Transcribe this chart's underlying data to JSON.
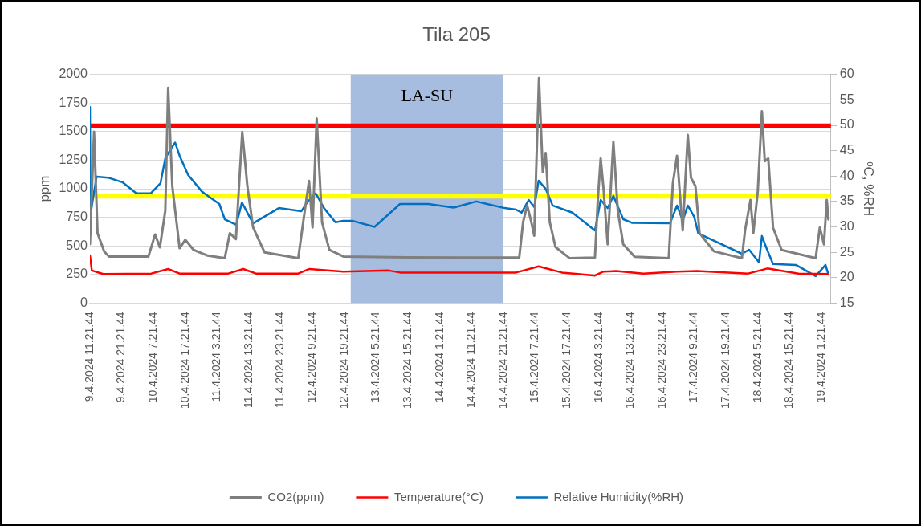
{
  "chart_data": {
    "type": "line",
    "title": "Tila 205",
    "ylabel": "ppm",
    "y2label": "ᵒC, %RH",
    "xlim": [
      "2024-04-09T11:21",
      "2024-04-19T04:21"
    ],
    "ylim": [
      0,
      2000
    ],
    "yticks": [
      0,
      250,
      500,
      750,
      1000,
      1250,
      1500,
      1750,
      2000
    ],
    "y2lim": [
      15,
      60
    ],
    "y2ticks": [
      15,
      20,
      25,
      30,
      35,
      40,
      45,
      50,
      55,
      60
    ],
    "xticks": [
      {
        "value": "2024-04-09T11:21",
        "label": "9.4.2024 11.21.44"
      },
      {
        "value": "2024-04-09T21:21",
        "label": "9.4.2024 21.21.44"
      },
      {
        "value": "2024-04-10T07:21",
        "label": "10.4.2024 7.21.44"
      },
      {
        "value": "2024-04-10T17:21",
        "label": "10.4.2024 17.21.44"
      },
      {
        "value": "2024-04-11T03:21",
        "label": "11.4.2024 3.21.44"
      },
      {
        "value": "2024-04-11T13:21",
        "label": "11.4.2024 13.21.44"
      },
      {
        "value": "2024-04-11T23:21",
        "label": "11.4.2024 23.21.44"
      },
      {
        "value": "2024-04-12T09:21",
        "label": "12.4.2024 9.21.44"
      },
      {
        "value": "2024-04-12T19:21",
        "label": "12.4.2024 19.21.44"
      },
      {
        "value": "2024-04-13T05:21",
        "label": "13.4.2024 5.21.44"
      },
      {
        "value": "2024-04-13T15:21",
        "label": "13.4.2024 15.21.44"
      },
      {
        "value": "2024-04-14T01:21",
        "label": "14.4.2024 1.21.44"
      },
      {
        "value": "2024-04-14T11:21",
        "label": "14.4.2024 11.21.44"
      },
      {
        "value": "2024-04-14T21:21",
        "label": "14.4.2024 21.21.44"
      },
      {
        "value": "2024-04-15T07:21",
        "label": "15.4.2024 7.21.44"
      },
      {
        "value": "2024-04-15T17:21",
        "label": "15.4.2024 17.21.44"
      },
      {
        "value": "2024-04-16T03:21",
        "label": "16.4.2024 3.21.44"
      },
      {
        "value": "2024-04-16T13:21",
        "label": "16.4.2024 13.21.44"
      },
      {
        "value": "2024-04-16T23:21",
        "label": "16.4.2024 23.21.44"
      },
      {
        "value": "2024-04-17T09:21",
        "label": "17.4.2024 9.21.44"
      },
      {
        "value": "2024-04-17T19:21",
        "label": "17.4.2024 19.21.44"
      },
      {
        "value": "2024-04-18T05:21",
        "label": "18.4.2024 5.21.44"
      },
      {
        "value": "2024-04-18T15:21",
        "label": "18.4.2024 15.21.44"
      },
      {
        "value": "2024-04-19T01:21",
        "label": "19.4.2024 1.21.44"
      }
    ],
    "grid": "y",
    "legend": "bottom",
    "marker": "none",
    "line_style": "solid",
    "bands": [
      {
        "axis": "x",
        "from": "2024-04-12T21:21",
        "to": "2024-04-14T21:21",
        "label": "LA-SU",
        "color": "#a7bde0"
      }
    ],
    "ref_lines": [
      {
        "axis": "y",
        "value": 1550,
        "color": "#ff0000"
      },
      {
        "axis": "y",
        "value": 935,
        "color": "#ffff00"
      }
    ],
    "series": [
      {
        "name": "CO2(ppm)",
        "color": "#7f7f7f",
        "x": [
          "2024-04-09T11:21",
          "2024-04-09T12:39",
          "2024-04-09T13:45",
          "2024-04-09T15:51",
          "2024-04-09T17:21",
          "2024-04-10T05:45",
          "2024-04-10T07:51",
          "2024-04-10T09:21",
          "2024-04-10T11:03",
          "2024-04-10T11:57",
          "2024-04-10T13:15",
          "2024-04-10T15:33",
          "2024-04-10T17:21",
          "2024-04-10T19:57",
          "2024-04-11T00:21",
          "2024-04-11T05:45",
          "2024-04-11T07:21",
          "2024-04-11T09:15",
          "2024-04-11T11:15",
          "2024-04-11T12:51",
          "2024-04-11T14:39",
          "2024-04-11T18:15",
          "2024-04-12T04:51",
          "2024-04-12T06:39",
          "2024-04-12T08:15",
          "2024-04-12T09:21",
          "2024-04-12T10:39",
          "2024-04-12T12:21",
          "2024-04-12T14:39",
          "2024-04-12T19:03",
          "2024-04-13T15:21",
          "2024-04-14T11:21",
          "2024-04-15T02:21",
          "2024-04-15T03:33",
          "2024-04-15T04:51",
          "2024-04-15T06:09",
          "2024-04-15T07:03",
          "2024-04-15T08:33",
          "2024-04-15T09:45",
          "2024-04-15T10:39",
          "2024-04-15T11:57",
          "2024-04-15T13:45",
          "2024-04-15T18:09",
          "2024-04-16T02:09",
          "2024-04-16T03:03",
          "2024-04-16T03:57",
          "2024-04-16T04:51",
          "2024-04-16T06:09",
          "2024-04-16T07:57",
          "2024-04-16T09:21",
          "2024-04-16T11:03",
          "2024-04-16T14:39",
          "2024-04-17T01:21",
          "2024-04-17T02:39",
          "2024-04-17T03:57",
          "2024-04-17T05:45",
          "2024-04-17T07:21",
          "2024-04-17T08:21",
          "2024-04-17T09:45",
          "2024-04-17T11:03",
          "2024-04-17T15:33",
          "2024-04-18T00:21",
          "2024-04-18T01:21",
          "2024-04-18T03:03",
          "2024-04-18T03:57",
          "2024-04-18T05:21",
          "2024-04-18T06:39",
          "2024-04-18T07:33",
          "2024-04-18T08:39",
          "2024-04-18T10:09",
          "2024-04-18T12:51",
          "2024-04-18T23:33",
          "2024-04-19T00:51",
          "2024-04-19T02:09",
          "2024-04-19T03:03",
          "2024-04-19T03:33"
        ],
        "values": [
          516,
          1500,
          610,
          450,
          407,
          407,
          600,
          487,
          807,
          1884,
          1025,
          480,
          553,
          465,
          415,
          393,
          611,
          560,
          1498,
          1025,
          662,
          444,
          393,
          756,
          1069,
          662,
          1615,
          705,
          465,
          407,
          400,
          398,
          398,
          708,
          853,
          708,
          589,
          1969,
          1144,
          1314,
          708,
          489,
          393,
          398,
          902,
          1265,
          999,
          514,
          1411,
          805,
          514,
          405,
          393,
          1047,
          1289,
          635,
          1471,
          1096,
          1023,
          611,
          453,
          393,
          635,
          902,
          611,
          975,
          1678,
          1241,
          1265,
          660,
          465,
          393,
          660,
          514,
          902,
          732
        ]
      },
      {
        "name": "Temperature(°C)",
        "color": "#ff0000",
        "axis": "y2",
        "x": [
          "2024-04-09T11:21",
          "2024-04-09T11:57",
          "2024-04-09T15:33",
          "2024-04-10T06:39",
          "2024-04-10T11:57",
          "2024-04-10T15:33",
          "2024-04-11T06:51",
          "2024-04-11T11:33",
          "2024-04-11T15:33",
          "2024-04-12T04:51",
          "2024-04-12T08:21",
          "2024-04-12T19:03",
          "2024-04-13T09:21",
          "2024-04-13T12:51",
          "2024-04-15T01:21",
          "2024-04-15T08:27",
          "2024-04-15T15:45",
          "2024-04-15T20:51",
          "2024-04-16T02:09",
          "2024-04-16T04:51",
          "2024-04-16T08:51",
          "2024-04-16T17:21",
          "2024-04-17T03:57",
          "2024-04-17T10:15",
          "2024-04-18T02:21",
          "2024-04-18T08:21",
          "2024-04-18T18:09",
          "2024-04-19T03:33"
        ],
        "values": [
          24.4,
          21.4,
          20.7,
          20.8,
          21.7,
          20.8,
          20.8,
          21.7,
          20.8,
          20.8,
          21.7,
          21.2,
          21.4,
          21.0,
          21.0,
          22.2,
          21.0,
          20.7,
          20.4,
          21.2,
          21.3,
          20.8,
          21.2,
          21.3,
          20.8,
          21.8,
          20.8,
          20.7
        ]
      },
      {
        "name": "Relative Humidity(%RH)",
        "color": "#0070c0",
        "axis": "y2",
        "x": [
          "2024-04-09T11:21",
          "2024-04-09T11:33",
          "2024-04-09T13:27",
          "2024-04-09T17:03",
          "2024-04-09T21:33",
          "2024-04-10T01:57",
          "2024-04-10T06:27",
          "2024-04-10T09:33",
          "2024-04-10T11:03",
          "2024-04-10T12:51",
          "2024-04-10T14:09",
          "2024-04-10T15:33",
          "2024-04-10T18:15",
          "2024-04-10T22:39",
          "2024-04-11T04:03",
          "2024-04-11T05:45",
          "2024-04-11T09:21",
          "2024-04-11T11:09",
          "2024-04-11T14:39",
          "2024-04-11T22:45",
          "2024-04-12T05:51",
          "2024-04-12T07:39",
          "2024-04-12T10:21",
          "2024-04-12T12:57",
          "2024-04-12T16:33",
          "2024-04-12T19:03",
          "2024-04-12T21:45",
          "2024-04-13T04:51",
          "2024-04-13T12:51",
          "2024-04-13T21:45",
          "2024-04-14T05:45",
          "2024-04-14T12:51",
          "2024-04-14T21:45",
          "2024-04-15T01:21",
          "2024-04-15T03:03",
          "2024-04-15T05:21",
          "2024-04-15T07:03",
          "2024-04-15T08:27",
          "2024-04-15T10:39",
          "2024-04-15T12:51",
          "2024-04-15T19:03",
          "2024-04-16T02:09",
          "2024-04-16T03:57",
          "2024-04-16T06:09",
          "2024-04-16T07:57",
          "2024-04-16T11:03",
          "2024-04-16T13:45",
          "2024-04-17T01:45",
          "2024-04-17T03:57",
          "2024-04-17T05:45",
          "2024-04-17T07:21",
          "2024-04-17T09:21",
          "2024-04-17T10:39",
          "2024-04-18T00:21",
          "2024-04-18T02:39",
          "2024-04-18T05:45",
          "2024-04-18T06:39",
          "2024-04-18T07:57",
          "2024-04-18T10:09",
          "2024-04-18T17:21",
          "2024-04-18T23:33",
          "2024-04-19T02:39",
          "2024-04-19T03:33"
        ],
        "values": [
          53.6,
          32.6,
          39.9,
          39.7,
          38.8,
          36.6,
          36.6,
          38.6,
          43.5,
          45.4,
          46.6,
          44.0,
          40.2,
          36.9,
          34.5,
          31.5,
          30.4,
          34.8,
          30.7,
          33.7,
          33.1,
          34.8,
          36.6,
          33.7,
          30.9,
          31.2,
          31.2,
          30.0,
          34.5,
          34.5,
          33.8,
          35.0,
          33.7,
          33.4,
          32.8,
          35.3,
          33.9,
          39.1,
          37.5,
          34.2,
          32.8,
          29.3,
          35.3,
          33.7,
          36.1,
          31.5,
          30.8,
          30.7,
          34.2,
          31.2,
          34.2,
          32.0,
          28.7,
          24.7,
          25.5,
          23.0,
          28.2,
          26.0,
          22.7,
          22.5,
          20.3,
          22.5,
          20.6
        ]
      }
    ]
  }
}
